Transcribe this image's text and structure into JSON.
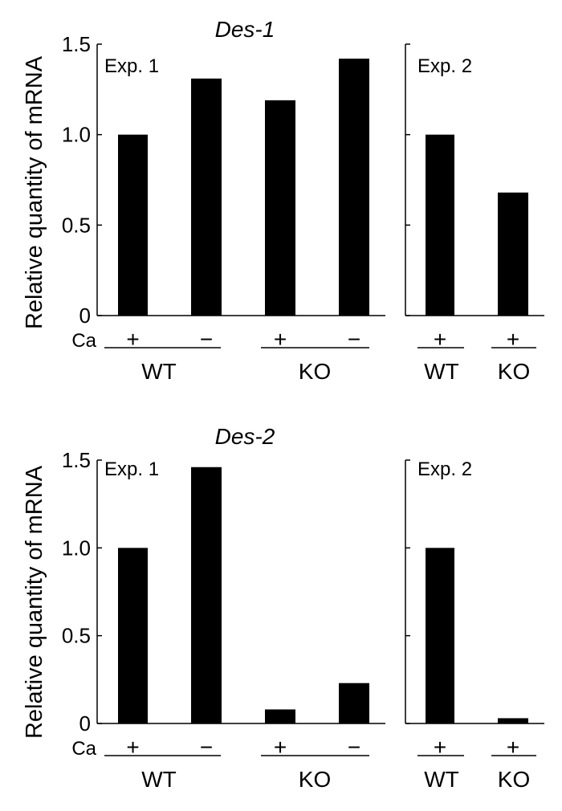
{
  "chart_data": [
    {
      "type": "bar",
      "title": "Des-1",
      "ylabel": "Relative quantity of mRNA",
      "ylim": [
        0,
        1.5
      ],
      "yticks": [
        "0",
        "0.5",
        "1.0",
        "1.5"
      ],
      "row_label": "Ca",
      "grid": false,
      "panels": [
        {
          "label": "Exp. 1",
          "groups": [
            {
              "name": "WT",
              "ca": [
                "+",
                "−"
              ],
              "values": [
                1.0,
                1.31
              ]
            },
            {
              "name": "KO",
              "ca": [
                "+",
                "−"
              ],
              "values": [
                1.19,
                1.42
              ]
            }
          ]
        },
        {
          "label": "Exp. 2",
          "groups": [
            {
              "name": "WT",
              "ca": [
                "+"
              ],
              "values": [
                1.0
              ]
            },
            {
              "name": "KO",
              "ca": [
                "+"
              ],
              "values": [
                0.68
              ]
            }
          ]
        }
      ]
    },
    {
      "type": "bar",
      "title": "Des-2",
      "ylabel": "Relative quantity of mRNA",
      "ylim": [
        0,
        1.5
      ],
      "yticks": [
        "0",
        "0.5",
        "1.0",
        "1.5"
      ],
      "row_label": "Ca",
      "grid": false,
      "panels": [
        {
          "label": "Exp. 1",
          "groups": [
            {
              "name": "WT",
              "ca": [
                "+",
                "−"
              ],
              "values": [
                1.0,
                1.46
              ]
            },
            {
              "name": "KO",
              "ca": [
                "+",
                "−"
              ],
              "values": [
                0.08,
                0.23
              ]
            }
          ]
        },
        {
          "label": "Exp. 2",
          "groups": [
            {
              "name": "WT",
              "ca": [
                "+"
              ],
              "values": [
                1.0
              ]
            },
            {
              "name": "KO",
              "ca": [
                "+"
              ],
              "values": [
                0.03
              ]
            }
          ]
        }
      ]
    }
  ],
  "colors": {
    "bar": "#000000",
    "axis": "#000000",
    "background": "#ffffff"
  }
}
